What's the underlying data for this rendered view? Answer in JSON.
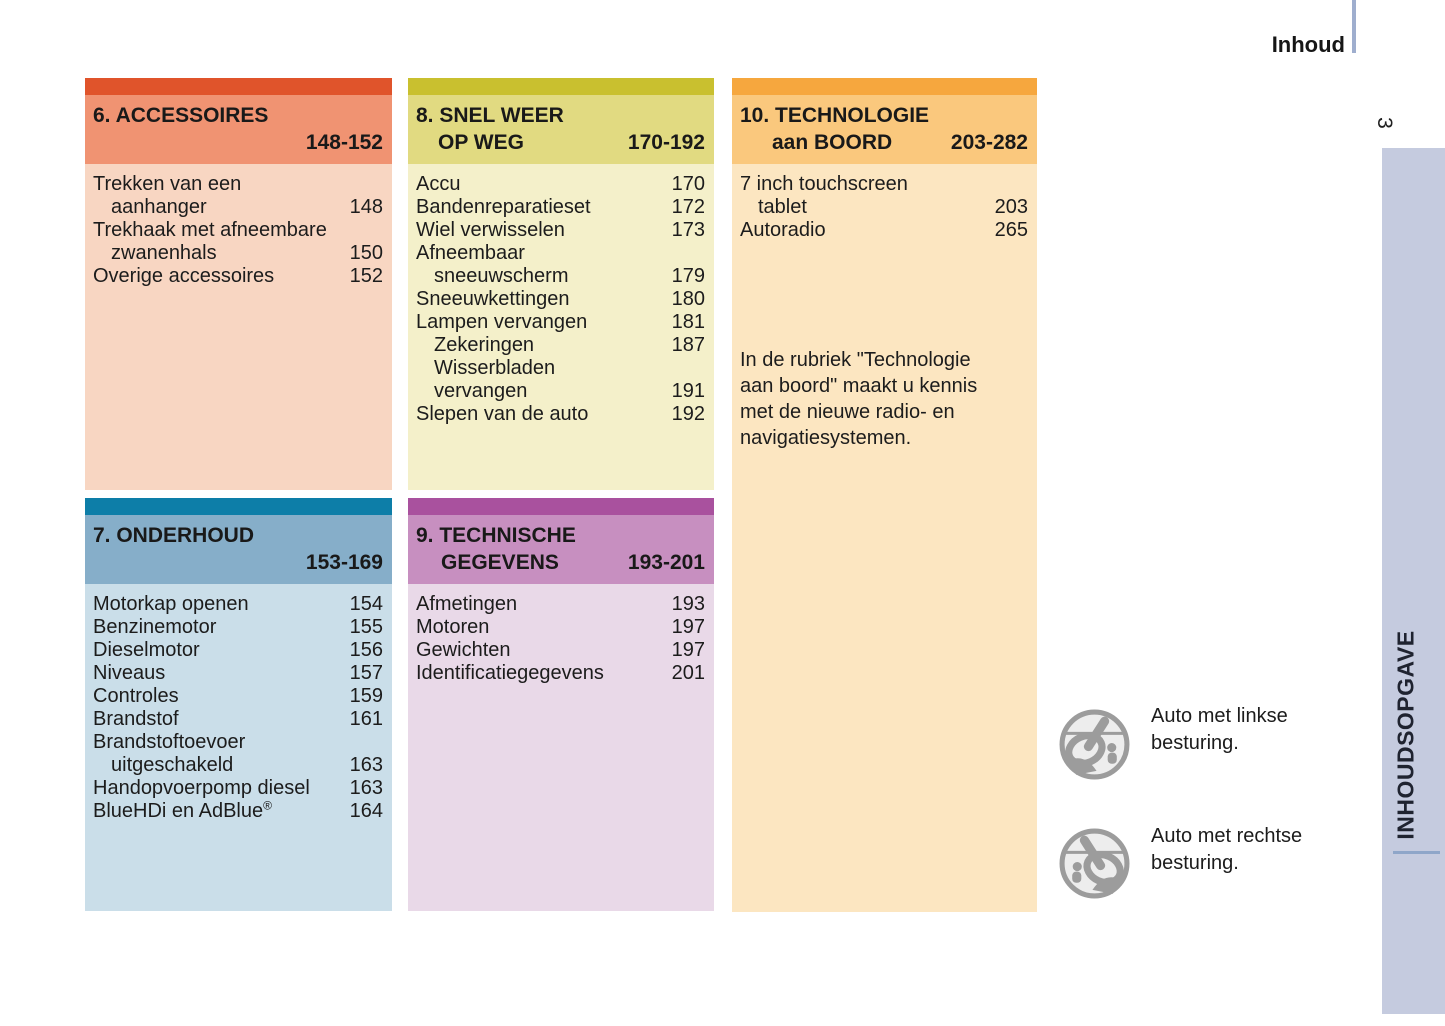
{
  "page": {
    "header_title": "Inhoud",
    "page_number": "3",
    "sidebar_label": "INHOUDSOPGAVE",
    "sidebar_color": "#c5cbdf",
    "header_rule_color": "#9faece",
    "sidebar_rule_color": "#8fa6c9"
  },
  "sections": [
    {
      "title_line1": "6. ACCESSOIRES",
      "title_line2": "",
      "range": "148-152",
      "colors": {
        "strip": "#e0542b",
        "header": "#f09372",
        "body": "#f8d6c2"
      },
      "items": [
        {
          "text": "Trekken van een",
          "page": "",
          "indent": 0
        },
        {
          "text": "aanhanger",
          "page": "148",
          "indent": 1
        },
        {
          "text": "Trekhaak met afneembare",
          "page": "",
          "indent": 0
        },
        {
          "text": "zwanenhals",
          "page": "150",
          "indent": 1
        },
        {
          "text": "Overige accessoires",
          "page": "152",
          "indent": 0
        }
      ]
    },
    {
      "title_line1": "7. ONDERHOUD",
      "title_line2": "",
      "range": "153-169",
      "colors": {
        "strip": "#0d7ea8",
        "header": "#86aec9",
        "body": "#cadee9"
      },
      "items": [
        {
          "text": "Motorkap openen",
          "page": "154",
          "indent": 0
        },
        {
          "text": "Benzinemotor",
          "page": "155",
          "indent": 0
        },
        {
          "text": "Dieselmotor",
          "page": "156",
          "indent": 0
        },
        {
          "text": "Niveaus",
          "page": "157",
          "indent": 0
        },
        {
          "text": "Controles",
          "page": "159",
          "indent": 0
        },
        {
          "text": "Brandstof",
          "page": "161",
          "indent": 0
        },
        {
          "text": "Brandstoftoevoer",
          "page": "",
          "indent": 0
        },
        {
          "text": "uitgeschakeld",
          "page": "163",
          "indent": 1
        },
        {
          "text": "Handopvoerpomp diesel",
          "page": "163",
          "indent": 0
        },
        {
          "text": "BlueHDi en AdBlue",
          "sup": "®",
          "page": "164",
          "indent": 0
        }
      ]
    },
    {
      "title_line1": "8. SNEL WEER",
      "title_line2": "OP WEG",
      "range": "170-192",
      "colors": {
        "strip": "#c9c02f",
        "header": "#e1da81",
        "body": "#f4f0ca"
      },
      "items": [
        {
          "text": "Accu",
          "page": "170",
          "indent": 0
        },
        {
          "text": "Bandenreparatieset",
          "page": "172",
          "indent": 0
        },
        {
          "text": "Wiel verwisselen",
          "page": "173",
          "indent": 0
        },
        {
          "text": "Afneembaar",
          "page": "",
          "indent": 0
        },
        {
          "text": "sneeuwscherm",
          "page": "179",
          "indent": 1
        },
        {
          "text": "Sneeuwkettingen",
          "page": "180",
          "indent": 0
        },
        {
          "text": "Lampen vervangen",
          "page": "181",
          "indent": 0
        },
        {
          "text": "Zekeringen",
          "page": "187",
          "indent": 1
        },
        {
          "text": "Wisserbladen",
          "page": "",
          "indent": 1
        },
        {
          "text": "vervangen",
          "page": "191",
          "indent": 1
        },
        {
          "text": "Slepen van de auto",
          "page": "192",
          "indent": 0
        }
      ]
    },
    {
      "title_line1": "9. TECHNISCHE",
      "title_line2": "GEGEVENS",
      "range": "193-201",
      "colors": {
        "strip": "#a9519e",
        "header": "#c78fc0",
        "body": "#e9d9e8"
      },
      "items": [
        {
          "text": "Afmetingen",
          "page": "193",
          "indent": 0
        },
        {
          "text": "Motoren",
          "page": "197",
          "indent": 0
        },
        {
          "text": "Gewichten",
          "page": "197",
          "indent": 0
        },
        {
          "text": "Identificatiegegevens",
          "page": "201",
          "indent": 0
        }
      ]
    },
    {
      "title_line1": "10. TECHNOLOGIE",
      "title_line2": "aan BOORD",
      "range": "203-282",
      "colors": {
        "strip": "#f6a73e",
        "header": "#fac87d",
        "body": "#fce6c1"
      },
      "items": [
        {
          "text": "7 inch touchscreen",
          "page": "",
          "indent": 0
        },
        {
          "text": "tablet",
          "page": "203",
          "indent": 1
        },
        {
          "text": "Autoradio",
          "page": "265",
          "indent": 0
        }
      ],
      "note": "In de rubriek \"Technologie aan boord\" maakt u kennis met de nieuwe radio- en navigatiesystemen."
    }
  ],
  "legend": [
    {
      "icon": "steering-wheel-left-icon",
      "text": "Auto met linkse besturing."
    },
    {
      "icon": "steering-wheel-right-icon",
      "text": "Auto met rechtse besturing."
    }
  ]
}
